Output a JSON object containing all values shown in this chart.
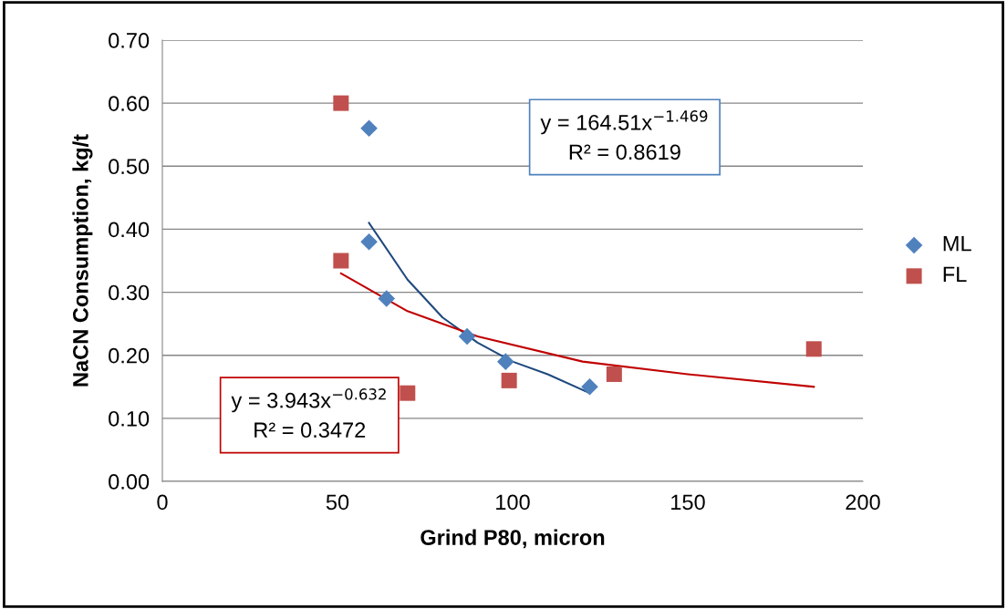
{
  "chart_data": {
    "type": "scatter",
    "xlabel": "Grind P80, micron",
    "ylabel": "NaCN Consumption, kg/t",
    "xlim": [
      0,
      200
    ],
    "xticks": [
      0,
      50,
      100,
      150,
      200
    ],
    "ylim": [
      0,
      0.7
    ],
    "yticks": [
      {
        "value": 0,
        "label": "0.00"
      },
      {
        "value": 0.1,
        "label": "0.10"
      },
      {
        "value": 0.2,
        "label": "0.20"
      },
      {
        "value": 0.3,
        "label": "0.30"
      },
      {
        "value": 0.4,
        "label": "0.40"
      },
      {
        "value": 0.5,
        "label": "0.50"
      },
      {
        "value": 0.6,
        "label": "0.60"
      },
      {
        "value": 0.7,
        "label": "0.70"
      }
    ],
    "grid": "y",
    "legend": "right",
    "series": [
      {
        "name": "ML",
        "color": "#4f81bd",
        "marker": "diamond",
        "x": [
          59,
          59,
          64,
          87,
          98,
          122
        ],
        "values": [
          0.56,
          0.38,
          0.29,
          0.23,
          0.19,
          0.15
        ]
      },
      {
        "name": "FL",
        "color": "#c0504d",
        "marker": "square",
        "x": [
          51,
          51,
          70,
          99,
          129,
          186
        ],
        "values": [
          0.6,
          0.35,
          0.14,
          0.16,
          0.17,
          0.21
        ]
      },
      {
        "type": "line",
        "color": "#1f497d",
        "x": [
          59,
          70,
          80,
          90,
          100,
          110,
          122
        ],
        "values": [
          0.41,
          0.32,
          0.26,
          0.22,
          0.19,
          0.17,
          0.14
        ]
      },
      {
        "type": "line",
        "color": "#c00000",
        "x": [
          51,
          70,
          90,
          120,
          150,
          186
        ],
        "values": [
          0.33,
          0.27,
          0.23,
          0.19,
          0.17,
          0.15
        ]
      }
    ],
    "annotations": [
      "y = 164.51x$^{−1.469}$\nR² = 0.8619",
      "y = 3.943x$^{−0.632}$\nR² = 0.3472"
    ]
  }
}
